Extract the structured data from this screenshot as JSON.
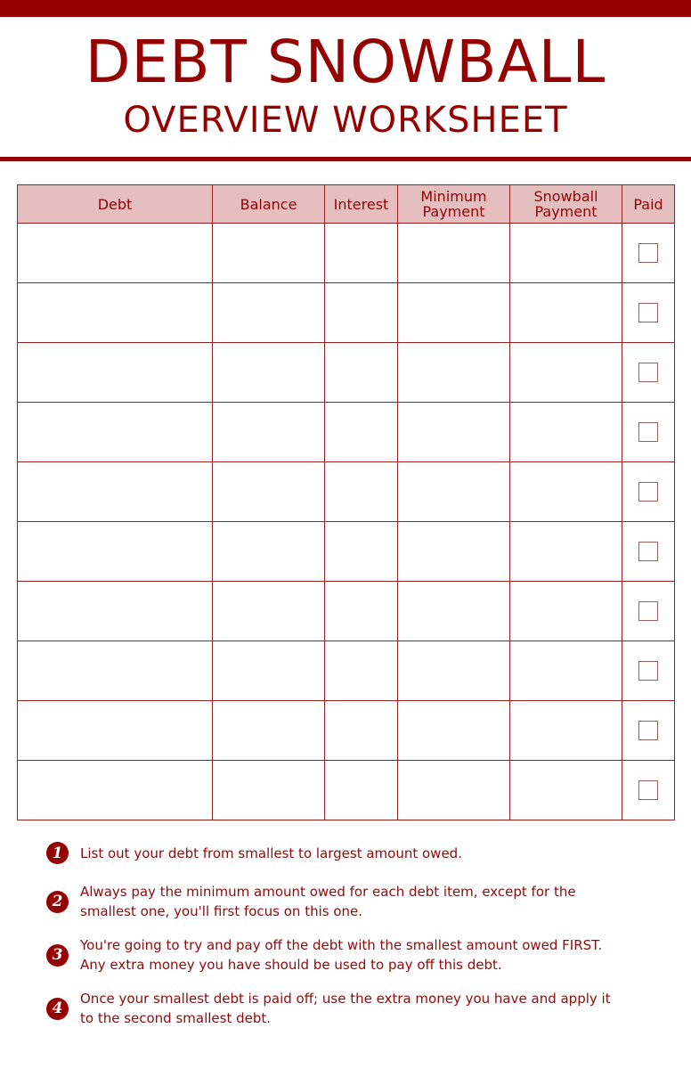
{
  "header": {
    "title": "DEBT SNOWBALL",
    "subtitle": "OVERVIEW WORKSHEET"
  },
  "colors": {
    "accent": "#950000",
    "header_fill": "#e5bfc0"
  },
  "table": {
    "columns": [
      "Debt",
      "Balance",
      "Interest",
      "Minimum Payment",
      "Snowball Payment",
      "Paid"
    ],
    "row_count": 10
  },
  "steps": [
    {
      "num": "1",
      "text": "List out your debt from smallest to largest amount owed."
    },
    {
      "num": "2",
      "text": "Always pay the minimum amount owed for each debt item, except for the smallest one, you'll first focus on this one."
    },
    {
      "num": "3",
      "text": "You're going to try and pay off the debt with the smallest amount owed FIRST. Any extra money you have should be used to pay off this debt."
    },
    {
      "num": "4",
      "text": "Once your smallest debt is paid off; use the extra money you have and apply it to the second smallest debt."
    }
  ]
}
